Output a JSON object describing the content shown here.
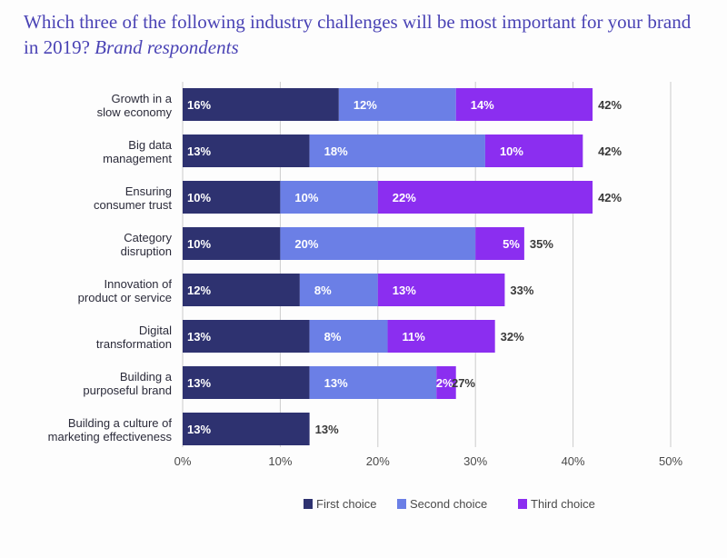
{
  "title": {
    "main": "Which three of the following industry challenges will be most important for your brand in 2019?",
    "sub": "Brand respondents"
  },
  "colors": {
    "first": "#2e3270",
    "second": "#6b7fe6",
    "third": "#8b2ef0",
    "grid": "#cccccc"
  },
  "chart_data": {
    "type": "bar",
    "orientation": "horizontal",
    "stacked": true,
    "categories": [
      [
        "Growth in a",
        "slow economy"
      ],
      [
        "Big data",
        "management"
      ],
      [
        "Ensuring",
        "consumer trust"
      ],
      [
        "Category",
        "disruption"
      ],
      [
        "Innovation of",
        "product or service"
      ],
      [
        "Digital",
        "transformation"
      ],
      [
        "Building a",
        "purposeful brand"
      ],
      [
        "Building a culture of",
        "marketing effectiveness"
      ]
    ],
    "series": [
      {
        "name": "First choice",
        "key": "first",
        "values": [
          16,
          13,
          10,
          10,
          12,
          13,
          13,
          13
        ]
      },
      {
        "name": "Second choice",
        "key": "second",
        "values": [
          12,
          18,
          10,
          20,
          8,
          8,
          13,
          0
        ]
      },
      {
        "name": "Third choice",
        "key": "third",
        "values": [
          14,
          10,
          22,
          5,
          13,
          11,
          2,
          0
        ]
      }
    ],
    "totals": [
      42,
      42,
      42,
      35,
      33,
      32,
      27,
      13
    ],
    "xlim": [
      0,
      50
    ],
    "xticks": [
      0,
      10,
      20,
      30,
      40,
      50
    ],
    "tick_suffix": "%",
    "value_suffix": "%",
    "legend": [
      "First choice",
      "Second choice",
      "Third choice"
    ],
    "legend_position": "bottom-right"
  }
}
